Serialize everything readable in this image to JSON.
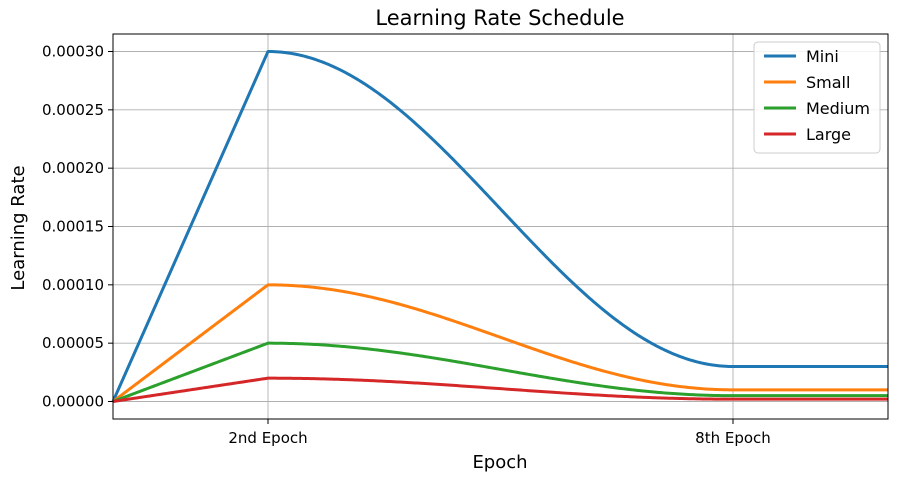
{
  "chart_data": {
    "type": "line",
    "title": "Learning Rate Schedule",
    "xlabel": "Epoch",
    "ylabel": "Learning Rate",
    "xlim": [
      0,
      10
    ],
    "ylim": [
      -1.5e-05,
      0.000315
    ],
    "grid": true,
    "legend_position": "top-right",
    "x_ticks": [
      {
        "value": 2,
        "label": "2nd Epoch"
      },
      {
        "value": 8,
        "label": "8th Epoch"
      }
    ],
    "y_ticks": [
      {
        "value": 0.0,
        "label": "0.00000"
      },
      {
        "value": 5e-05,
        "label": "0.00005"
      },
      {
        "value": 0.0001,
        "label": "0.00010"
      },
      {
        "value": 0.00015,
        "label": "0.00015"
      },
      {
        "value": 0.0002,
        "label": "0.00020"
      },
      {
        "value": 0.00025,
        "label": "0.00025"
      },
      {
        "value": 0.0003,
        "label": "0.00030"
      }
    ],
    "schedule_knots": {
      "warmup_end_epoch": 2,
      "decay_end_epoch": 8,
      "end_epoch": 10
    },
    "series": [
      {
        "name": "Mini",
        "color": "#1f77b4",
        "peak": 0.0003,
        "final": 3e-05
      },
      {
        "name": "Small",
        "color": "#ff7f0e",
        "peak": 0.0001,
        "final": 1e-05
      },
      {
        "name": "Medium",
        "color": "#2ca02c",
        "peak": 5e-05,
        "final": 5e-06
      },
      {
        "name": "Large",
        "color": "#d62728",
        "peak": 2e-05,
        "final": 2e-06
      }
    ]
  }
}
